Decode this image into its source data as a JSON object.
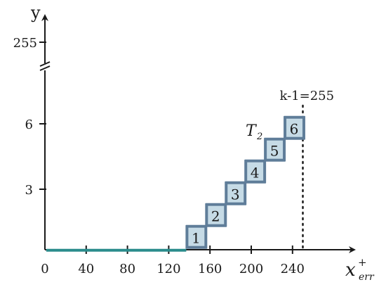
{
  "chart_data": {
    "type": "step",
    "x_axis": {
      "label": "x",
      "label_superscript": "+",
      "label_subscript": "err",
      "ticks": [
        0,
        40,
        80,
        120,
        160,
        200,
        240
      ],
      "range": [
        0,
        280
      ]
    },
    "y_axis": {
      "label": "y",
      "ticks": [
        3,
        6
      ],
      "broken_tick": 255,
      "axis_break": true
    },
    "baseline_segment": {
      "x": [
        0,
        137
      ],
      "y": 0.2,
      "color": "#2a8c8c"
    },
    "steps": [
      {
        "label": "1",
        "x": 137,
        "y": 0.3
      },
      {
        "label": "2",
        "x": 156,
        "y": 1.3
      },
      {
        "label": "3",
        "x": 175,
        "y": 2.3
      },
      {
        "label": "4",
        "x": 194,
        "y": 3.3
      },
      {
        "label": "5",
        "x": 213,
        "y": 4.3
      },
      {
        "label": "6",
        "x": 232,
        "y": 5.3
      }
    ],
    "step_width": 19,
    "step_fill": "#c6dbe6",
    "step_border": "#5f7d99",
    "threshold_line": {
      "x": 250,
      "label": "k-1=255",
      "style": "dotted"
    },
    "annotation": {
      "text": "T",
      "subscript": "2"
    }
  }
}
